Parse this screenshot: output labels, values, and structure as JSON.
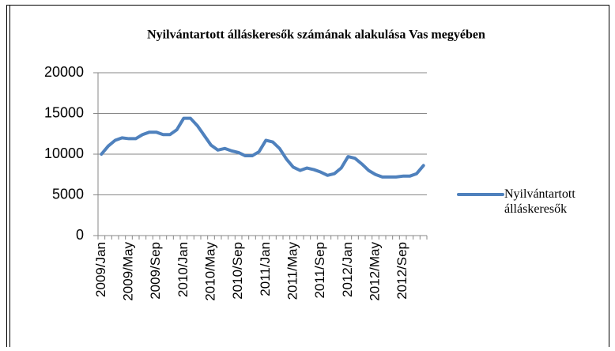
{
  "chart_data": {
    "type": "line",
    "title": "Nyilvántartott álláskeresők számának alakulása Vas megyében",
    "categories": [
      "2009/Jan",
      null,
      null,
      null,
      "2009/May",
      null,
      null,
      null,
      "2009/Sep",
      null,
      null,
      null,
      "2010/Jan",
      null,
      null,
      null,
      "2010/May",
      null,
      null,
      null,
      "2010/Sep",
      null,
      null,
      null,
      "2011/Jan",
      null,
      null,
      null,
      "2011/May",
      null,
      null,
      null,
      "2011/Sep",
      null,
      null,
      null,
      "2012/Jan",
      null,
      null,
      null,
      "2012/May",
      null,
      null,
      null,
      "2012/Sep",
      null,
      null,
      null
    ],
    "series": [
      {
        "name": "Nyilvántartott álláskeresők",
        "color": "#4f81bd",
        "values": [
          10000,
          11000,
          11700,
          12000,
          11900,
          11900,
          12400,
          12700,
          12700,
          12400,
          12400,
          13000,
          14400,
          14400,
          13500,
          12300,
          11100,
          10500,
          10700,
          10400,
          10200,
          9800,
          9800,
          10300,
          11700,
          11500,
          10700,
          9400,
          8400,
          8000,
          8300,
          8100,
          7800,
          7400,
          7600,
          8300,
          9700,
          9500,
          8800,
          8000,
          7500,
          7200,
          7200,
          7200,
          7300,
          7300,
          7600,
          8600
        ]
      }
    ],
    "ylim": [
      0,
      20000
    ],
    "yticks": [
      0,
      5000,
      10000,
      15000,
      20000
    ],
    "grid": true,
    "legend": "right"
  }
}
